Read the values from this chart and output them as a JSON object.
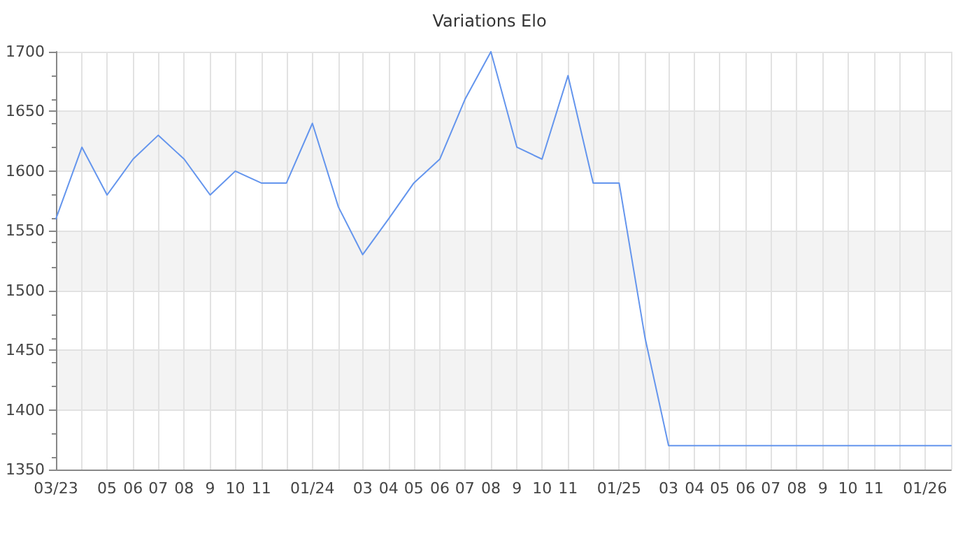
{
  "chart_data": {
    "type": "line",
    "title": "Variations Elo",
    "x": [
      "2023-03",
      "2023-04",
      "2023-05",
      "2023-06",
      "2023-07",
      "2023-08",
      "2023-09",
      "2023-10",
      "2023-11",
      "2023-12",
      "2024-01",
      "2024-02",
      "2024-03",
      "2024-04",
      "2024-05",
      "2024-06",
      "2024-07",
      "2024-08",
      "2024-09",
      "2024-10",
      "2024-11",
      "2024-12",
      "2025-01",
      "2025-02",
      "2025-03",
      "2025-04",
      "2025-05",
      "2025-06",
      "2025-07",
      "2025-08",
      "2025-09",
      "2025-10",
      "2025-11",
      "2025-12",
      "2026-01",
      "2026-02"
    ],
    "series": [
      {
        "color": "#6495ed",
        "values": [
          1560,
          1620,
          1580,
          1610,
          1630,
          1610,
          1580,
          1600,
          1590,
          1590,
          1640,
          1570,
          1530,
          1560,
          1590,
          1610,
          1660,
          1700,
          1620,
          1610,
          1680,
          1590,
          1590,
          1460,
          1370,
          1370,
          1370,
          1370,
          1370,
          1370,
          1370,
          1370,
          1370,
          1370,
          1370,
          1370
        ]
      }
    ],
    "xlim": [
      "2023-03",
      "2026-02"
    ],
    "xticks": [
      {
        "value": "2023-03",
        "label": "03/23"
      },
      {
        "value": "2023-04",
        "label": null
      },
      {
        "value": "2023-05",
        "label": "05"
      },
      {
        "value": "2023-06",
        "label": "06"
      },
      {
        "value": "2023-07",
        "label": "07"
      },
      {
        "value": "2023-08",
        "label": "08"
      },
      {
        "value": "2023-09",
        "label": "9"
      },
      {
        "value": "2023-10",
        "label": "10"
      },
      {
        "value": "2023-11",
        "label": "11"
      },
      {
        "value": "2023-12",
        "label": null
      },
      {
        "value": "2024-01",
        "label": "01/24"
      },
      {
        "value": "2024-02",
        "label": null
      },
      {
        "value": "2024-03",
        "label": "03"
      },
      {
        "value": "2024-04",
        "label": "04"
      },
      {
        "value": "2024-05",
        "label": "05"
      },
      {
        "value": "2024-06",
        "label": "06"
      },
      {
        "value": "2024-07",
        "label": "07"
      },
      {
        "value": "2024-08",
        "label": "08"
      },
      {
        "value": "2024-09",
        "label": "9"
      },
      {
        "value": "2024-10",
        "label": "10"
      },
      {
        "value": "2024-11",
        "label": "11"
      },
      {
        "value": "2024-12",
        "label": null
      },
      {
        "value": "2025-01",
        "label": "01/25"
      },
      {
        "value": "2025-02",
        "label": null
      },
      {
        "value": "2025-03",
        "label": "03"
      },
      {
        "value": "2025-04",
        "label": "04"
      },
      {
        "value": "2025-05",
        "label": "05"
      },
      {
        "value": "2025-06",
        "label": "06"
      },
      {
        "value": "2025-07",
        "label": "07"
      },
      {
        "value": "2025-08",
        "label": "08"
      },
      {
        "value": "2025-09",
        "label": "9"
      },
      {
        "value": "2025-10",
        "label": "10"
      },
      {
        "value": "2025-11",
        "label": "11"
      },
      {
        "value": "2025-12",
        "label": null
      },
      {
        "value": "2026-01",
        "label": "01/26"
      },
      {
        "value": "2026-02",
        "label": null
      }
    ],
    "ylim": [
      1350,
      1700
    ],
    "yticks": [
      1350,
      1400,
      1450,
      1500,
      1550,
      1600,
      1650,
      1700
    ],
    "grid": true,
    "marker": "none",
    "line_style": "solid"
  }
}
